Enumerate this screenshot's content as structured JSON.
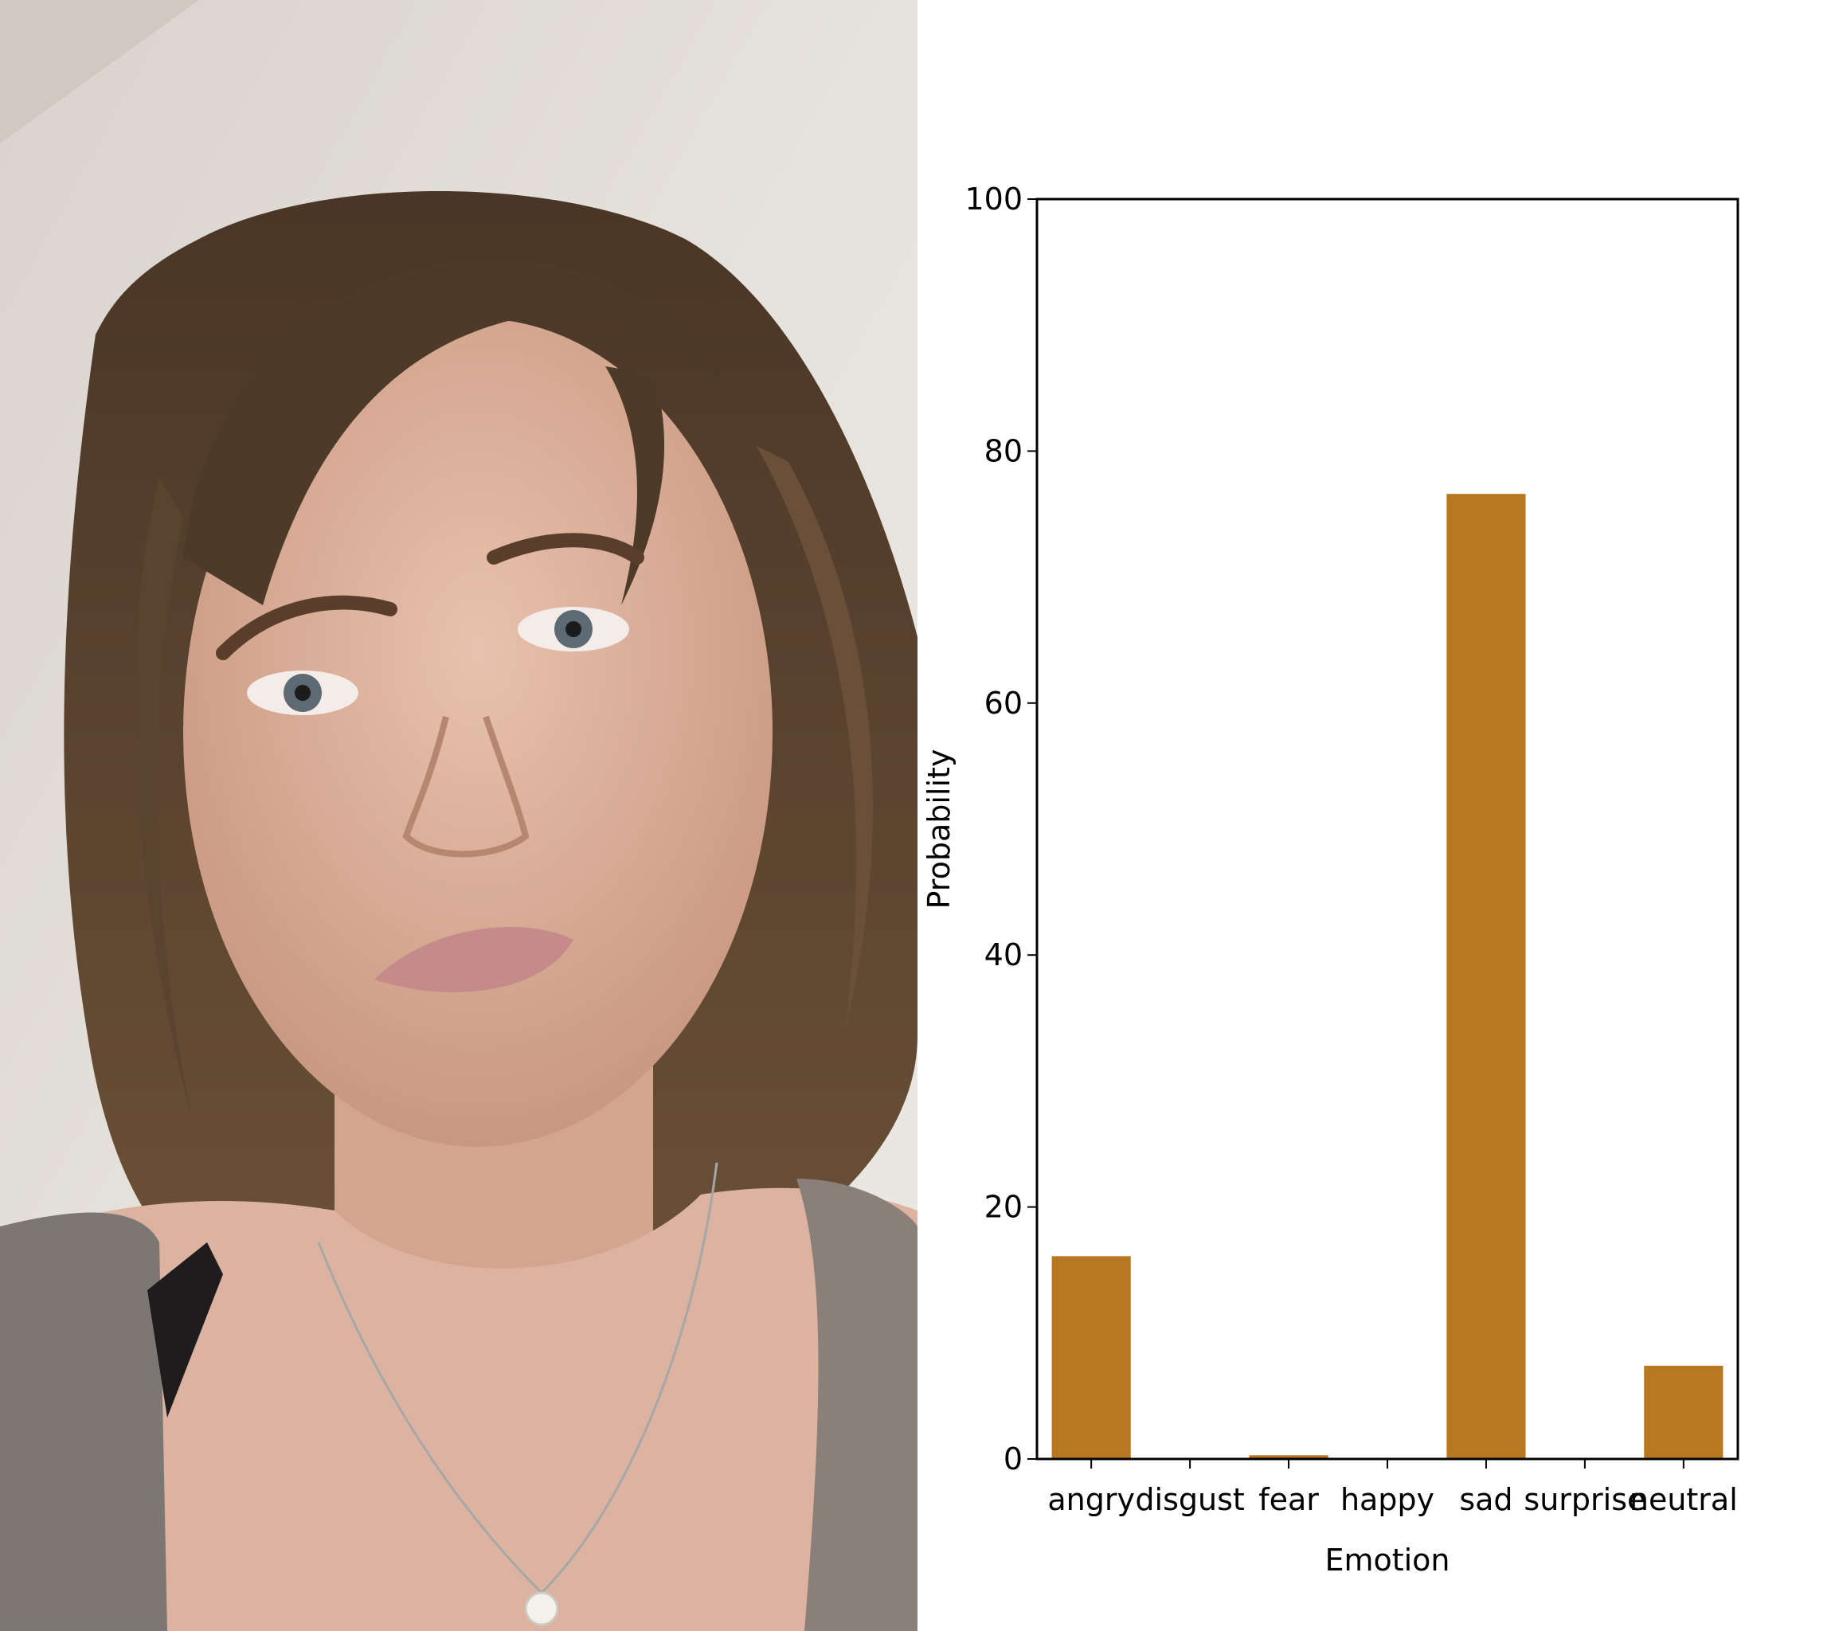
{
  "photo": {
    "subject_icon": "person-portrait",
    "colors": {
      "wall": "#e4e0da",
      "hair": "#5e4630",
      "skin": "#d9ad98",
      "shirt": "#7f7671"
    }
  },
  "chart_data": {
    "type": "bar",
    "categories": [
      "angry",
      "disgust",
      "fear",
      "happy",
      "sad",
      "surprise",
      "neutral"
    ],
    "values": [
      16.1,
      0.0,
      0.3,
      0.0,
      76.6,
      0.0,
      7.4
    ],
    "xlabel": "Emotion",
    "ylabel": "Probability",
    "ylim": [
      0,
      100
    ],
    "yticks": [
      "0",
      "20",
      "40",
      "60",
      "80",
      "100"
    ],
    "bar_color": "#b87820",
    "grid": false
  }
}
